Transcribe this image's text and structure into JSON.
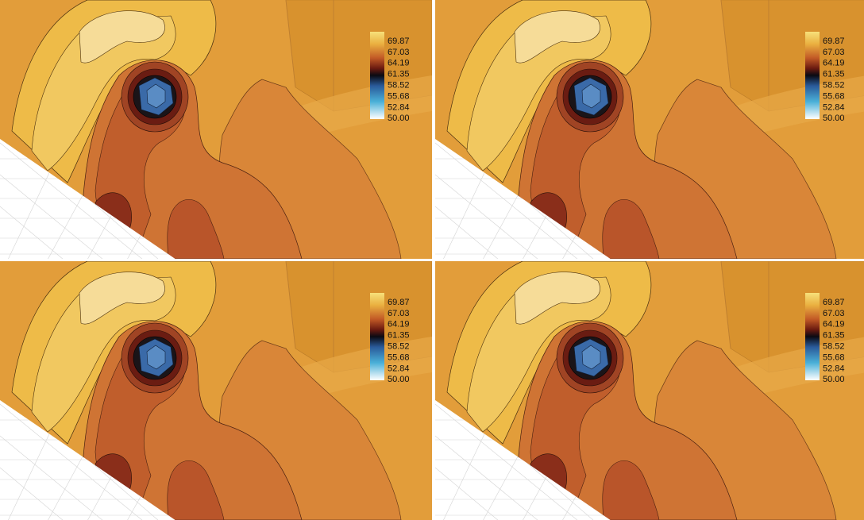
{
  "panels": [
    {
      "colorbar": {
        "labels": [
          "69.87",
          "67.03",
          "64.19",
          "61.35",
          "58.52",
          "55.68",
          "52.84",
          "50.00"
        ]
      }
    },
    {
      "colorbar": {
        "labels": [
          "69.87",
          "67.03",
          "64.19",
          "61.35",
          "58.52",
          "55.68",
          "52.84",
          "50.00"
        ]
      }
    },
    {
      "colorbar": {
        "labels": [
          "69.87",
          "67.03",
          "64.19",
          "61.35",
          "58.52",
          "55.68",
          "52.84",
          "50.00"
        ]
      }
    },
    {
      "colorbar": {
        "labels": [
          "69.87",
          "67.03",
          "64.19",
          "61.35",
          "58.52",
          "55.68",
          "52.84",
          "50.00"
        ]
      }
    }
  ]
}
